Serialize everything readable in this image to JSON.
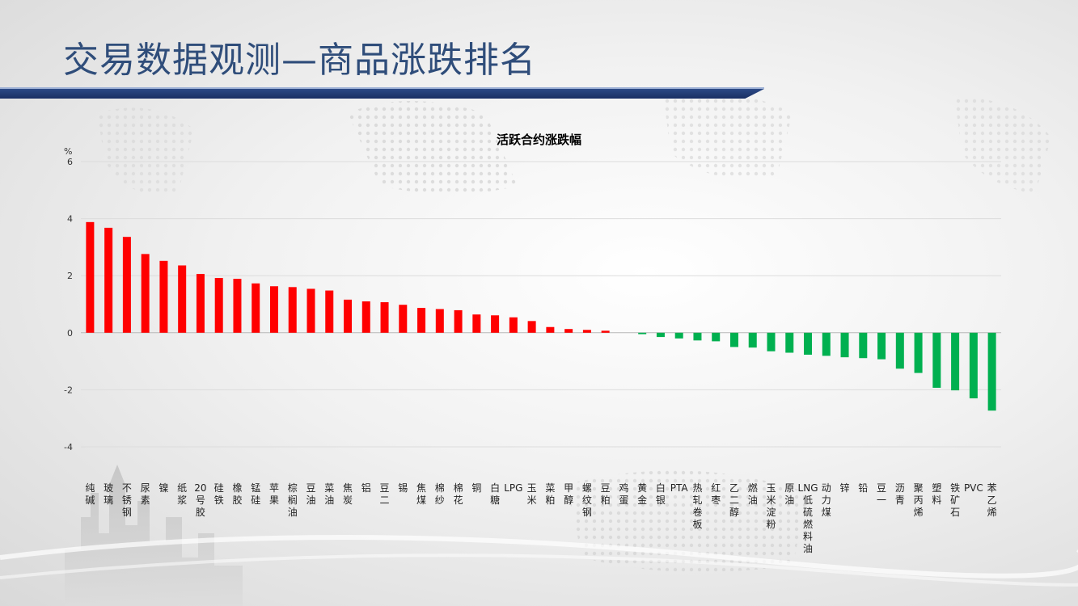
{
  "slide": {
    "title": "交易数据观测—商品涨跌排名"
  },
  "colors": {
    "title": "#2f4d7a",
    "banner": "#22386f",
    "positive": "#ff0000",
    "negative": "#00b050"
  },
  "chart_data": {
    "type": "bar",
    "title": "活跃合约涨跌幅",
    "ylabel": "%",
    "xlabel": "",
    "ylim": [
      -4,
      6
    ],
    "yticks": [
      6,
      4,
      2,
      0,
      -2,
      -4
    ],
    "grid": true,
    "legend": "none",
    "categories": [
      "纯碱",
      "玻璃",
      "不锈钢",
      "尿素",
      "镍",
      "纸浆",
      "20号胶",
      "硅铁",
      "橡胶",
      "锰硅",
      "苹果",
      "棕榈油",
      "豆油",
      "菜油",
      "焦炭",
      "铝",
      "豆二",
      "锡",
      "焦煤",
      "棉纱",
      "棉花",
      "铜",
      "白糖",
      "LPG",
      "玉米",
      "菜粕",
      "甲醇",
      "螺纹钢",
      "豆粕",
      "鸡蛋",
      "黄金",
      "白银",
      "PTA",
      "热轧卷板",
      "红枣",
      "乙二醇",
      "燃油",
      "玉米淀粉",
      "原油",
      "LNG低硫燃料油",
      "动力煤",
      "锌",
      "铅",
      "豆一",
      "沥青",
      "聚丙烯",
      "塑料",
      "铁矿石",
      "PVC",
      "苯乙烯"
    ],
    "values": [
      3.88,
      3.68,
      3.36,
      2.76,
      2.52,
      2.36,
      2.06,
      1.92,
      1.89,
      1.73,
      1.63,
      1.6,
      1.54,
      1.48,
      1.16,
      1.1,
      1.07,
      0.98,
      0.87,
      0.83,
      0.79,
      0.64,
      0.61,
      0.54,
      0.41,
      0.2,
      0.13,
      0.1,
      0.07,
      0.0,
      -0.05,
      -0.15,
      -0.2,
      -0.27,
      -0.3,
      -0.5,
      -0.52,
      -0.65,
      -0.7,
      -0.77,
      -0.81,
      -0.86,
      -0.89,
      -0.93,
      -1.26,
      -1.41,
      -1.93,
      -2.02,
      -2.3,
      -2.73
    ]
  }
}
